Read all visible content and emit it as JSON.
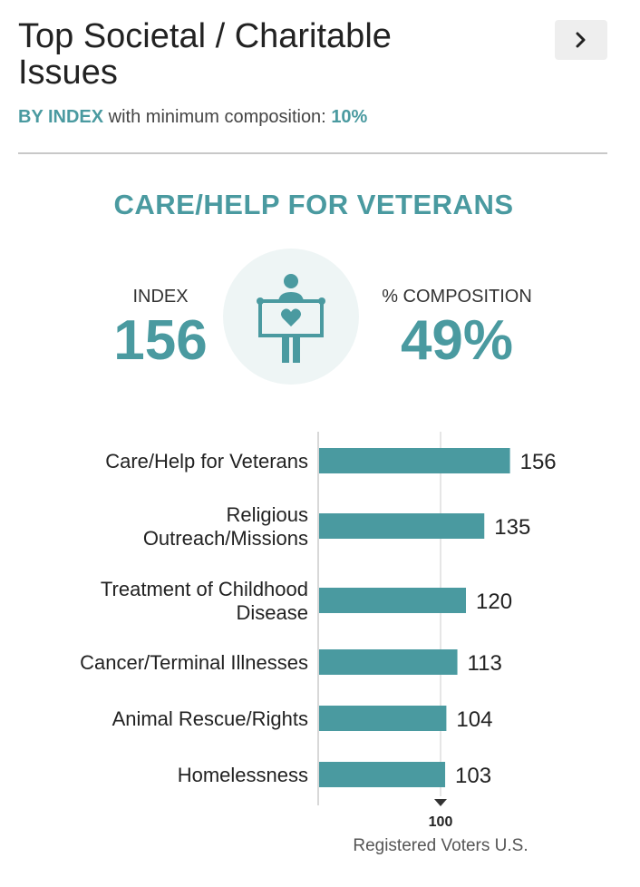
{
  "header": {
    "title_line1": "Top Societal / Charitable",
    "title_line2": "Issues",
    "subtitle_mode": "BY INDEX",
    "subtitle_text": "with minimum composition:",
    "subtitle_min": "10%",
    "next_icon": "chevron-right-icon"
  },
  "highlight": {
    "title": "CARE/HELP FOR VETERANS",
    "index_label": "INDEX",
    "index_value": "156",
    "composition_label": "% COMPOSITION",
    "composition_value": "49%",
    "icon": "person-holding-heart-sign-icon"
  },
  "colors": {
    "accent": "#4a9aa0",
    "icon_bg": "#eef5f5",
    "icon_fg": "#4a9aa0",
    "bar": "#4a9aa0"
  },
  "chart_data": {
    "type": "bar",
    "orientation": "horizontal",
    "categories": [
      [
        "Care/Help for Veterans"
      ],
      [
        "Religious",
        "Outreach/Missions"
      ],
      [
        "Treatment of Childhood",
        "Disease"
      ],
      [
        "Cancer/Terminal Illnesses"
      ],
      [
        "Animal Rescue/Rights"
      ],
      [
        "Homelessness"
      ]
    ],
    "values": [
      156,
      135,
      120,
      113,
      104,
      103
    ],
    "reference_value": 100,
    "reference_label": "100",
    "axis_caption": "Registered Voters U.S.",
    "xlim": [
      0,
      156
    ]
  }
}
